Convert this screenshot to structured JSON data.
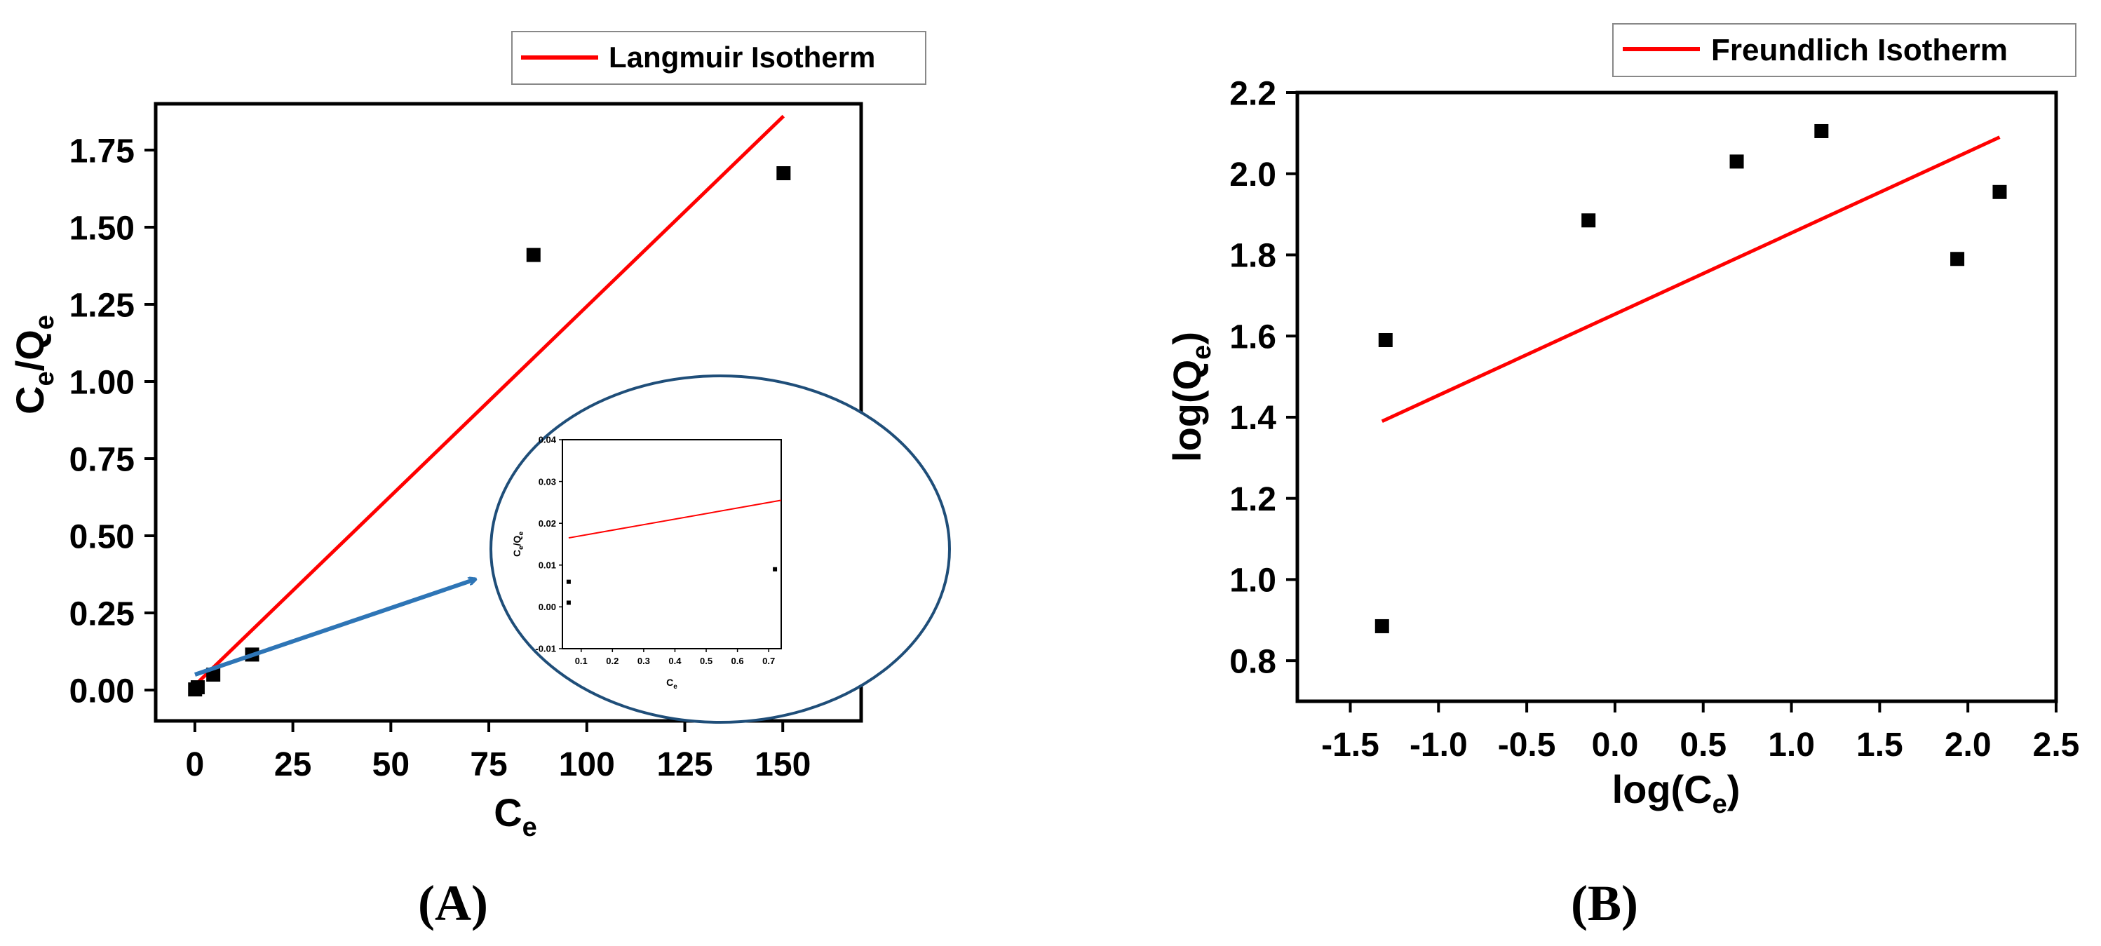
{
  "colors": {
    "fit_line": "#ff0000",
    "points": "#000000",
    "inset_circle": "#1f4e79",
    "arrow": "#2e75b6"
  },
  "panels": {
    "a_label": "(A)",
    "b_label": "(B)"
  },
  "chart_data": [
    {
      "id": "A",
      "type": "scatter",
      "xlabel": {
        "main": "C",
        "sub": "e"
      },
      "ylabel": {
        "main1": "C",
        "sub1": "e",
        "slash": "/Q",
        "sub2": "e"
      },
      "xlim": [
        -10,
        170
      ],
      "ylim": [
        -0.1,
        1.9
      ],
      "xticks": [
        0,
        25,
        50,
        75,
        100,
        125,
        150
      ],
      "xtick_labels": [
        "0",
        "25",
        "50",
        "75",
        "100",
        "125",
        "150"
      ],
      "yticks": [
        0,
        0.25,
        0.5,
        0.75,
        1.0,
        1.25,
        1.5,
        1.75
      ],
      "ytick_labels": [
        "0.00",
        "0.25",
        "0.50",
        "0.75",
        "1.00",
        "1.25",
        "1.50",
        "1.75"
      ],
      "legend": {
        "label": "Langmuir Isotherm",
        "position": "top-right (outside)"
      },
      "series": [
        {
          "kind": "points",
          "x": [
            0.06,
            0.72,
            4.7,
            14.6,
            86.4,
            150.2
          ],
          "y": [
            0.002,
            0.009,
            0.05,
            0.115,
            1.41,
            1.675
          ]
        },
        {
          "name": "Langmuir Isotherm",
          "kind": "line",
          "x": [
            0.06,
            150.2
          ],
          "y": [
            0.016,
            1.86
          ]
        }
      ],
      "inset": {
        "xlabel": {
          "main": "C",
          "sub": "e"
        },
        "ylabel": {
          "main1": "C",
          "sub1": "e",
          "slash": "/Q",
          "sub2": "e"
        },
        "xlim": [
          0.04,
          0.74
        ],
        "ylim": [
          -0.01,
          0.04
        ],
        "xticks": [
          0.1,
          0.2,
          0.3,
          0.4,
          0.5,
          0.6,
          0.7
        ],
        "xtick_labels": [
          "0.1",
          "0.2",
          "0.3",
          "0.4",
          "0.5",
          "0.6",
          "0.7"
        ],
        "yticks": [
          -0.01,
          0.0,
          0.01,
          0.02,
          0.03,
          0.04
        ],
        "ytick_labels": [
          "-0.01",
          "0.00",
          "0.01",
          "0.02",
          "0.03",
          "0.04"
        ],
        "series": [
          {
            "kind": "points",
            "x": [
              0.06,
              0.06,
              0.72
            ],
            "y": [
              0.006,
              0.001,
              0.009
            ]
          },
          {
            "kind": "line",
            "x": [
              0.06,
              0.74
            ],
            "y": [
              0.0165,
              0.0255
            ]
          }
        ]
      }
    },
    {
      "id": "B",
      "type": "scatter",
      "xlabel": {
        "main": "log(C",
        "sub": "e",
        "close": ")"
      },
      "ylabel": {
        "main": "log(Q",
        "sub": "e",
        "close": ")"
      },
      "xlim": [
        -1.8,
        2.5
      ],
      "ylim": [
        0.7,
        2.2
      ],
      "xticks": [
        -1.5,
        -1.0,
        -0.5,
        0.0,
        0.5,
        1.0,
        1.5,
        2.0,
        2.5
      ],
      "xtick_labels": [
        "-1.5",
        "-1.0",
        "-0.5",
        "0.0",
        "0.5",
        "1.0",
        "1.5",
        "2.0",
        "2.5"
      ],
      "yticks": [
        0.8,
        1.0,
        1.2,
        1.4,
        1.6,
        1.8,
        2.0,
        2.2
      ],
      "ytick_labels": [
        "0.8",
        "1.0",
        "1.2",
        "1.4",
        "1.6",
        "1.8",
        "2.0",
        "2.2"
      ],
      "legend": {
        "label": "Freundlich Isotherm",
        "position": "top-right (outside)"
      },
      "series": [
        {
          "kind": "points",
          "x": [
            -1.32,
            -1.3,
            -0.15,
            0.69,
            1.17,
            1.94,
            2.18
          ],
          "y": [
            0.885,
            1.59,
            1.885,
            2.03,
            2.105,
            1.79,
            1.955
          ]
        },
        {
          "name": "Freundlich Isotherm",
          "kind": "line",
          "x": [
            -1.32,
            2.18
          ],
          "y": [
            1.39,
            2.09
          ]
        }
      ]
    }
  ]
}
